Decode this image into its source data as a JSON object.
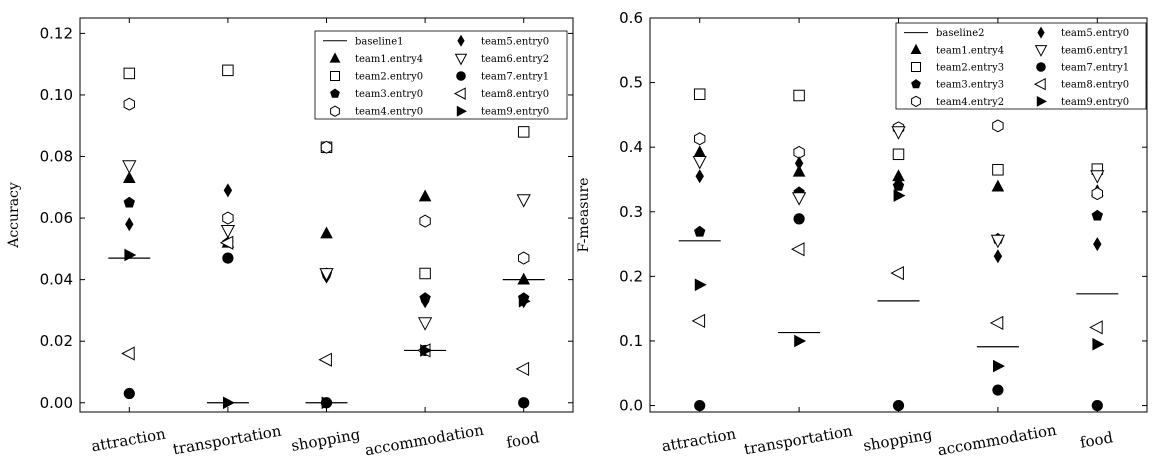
{
  "chart_data": [
    {
      "type": "scatter",
      "xlabel": "",
      "ylabel": "Accuracy",
      "categories": [
        "attraction",
        "transportation",
        "shopping",
        "accommodation",
        "food"
      ],
      "ylim": [
        -0.003,
        0.125
      ],
      "yticks": [
        "0.00",
        "0.02",
        "0.04",
        "0.06",
        "0.08",
        "0.10",
        "0.12"
      ],
      "legend_position": "top-right",
      "series": [
        {
          "name": "baseline1",
          "marker": "line",
          "values": [
            0.047,
            0.0,
            0.0,
            0.017,
            0.04
          ]
        },
        {
          "name": "team1.entry4",
          "marker": "triangle-up",
          "values": [
            0.073,
            0.052,
            0.055,
            0.067,
            0.04
          ]
        },
        {
          "name": "team2.entry0",
          "marker": "square",
          "values": [
            0.107,
            0.108,
            0.083,
            0.042,
            0.088
          ]
        },
        {
          "name": "team3.entry0",
          "marker": "pentagon",
          "values": [
            0.065,
            0.052,
            0.042,
            0.034,
            0.034
          ]
        },
        {
          "name": "team4.entry0",
          "marker": "hexagon",
          "values": [
            0.097,
            0.06,
            0.083,
            0.059,
            0.047
          ]
        },
        {
          "name": "team5.entry0",
          "marker": "diamond",
          "values": [
            0.058,
            0.069,
            0.041,
            0.033,
            0.033
          ]
        },
        {
          "name": "team6.entry2",
          "marker": "triangle-down",
          "values": [
            0.077,
            0.056,
            0.042,
            0.026,
            0.066
          ]
        },
        {
          "name": "team7.entry1",
          "marker": "circle",
          "values": [
            0.003,
            0.047,
            0.0,
            0.017,
            0.0
          ]
        },
        {
          "name": "team8.entry0",
          "marker": "triangle-left",
          "values": [
            0.016,
            0.052,
            0.014,
            0.017,
            0.011
          ]
        },
        {
          "name": "team9.entry0",
          "marker": "triangle-right",
          "values": [
            0.048,
            0.0,
            0.0,
            0.017,
            0.033
          ]
        }
      ]
    },
    {
      "type": "scatter",
      "xlabel": "",
      "ylabel": "F-measure",
      "categories": [
        "attraction",
        "transportation",
        "shopping",
        "accommodation",
        "food"
      ],
      "ylim": [
        -0.01,
        0.6
      ],
      "yticks": [
        "0.0",
        "0.1",
        "0.2",
        "0.3",
        "0.4",
        "0.5",
        "0.6"
      ],
      "legend_position": "top-right",
      "series": [
        {
          "name": "baseline2",
          "marker": "line",
          "values": [
            0.255,
            0.113,
            0.162,
            0.091,
            0.173
          ]
        },
        {
          "name": "team1.entry4",
          "marker": "triangle-up",
          "values": [
            0.392,
            0.362,
            0.355,
            0.339,
            0.332
          ]
        },
        {
          "name": "team2.entry3",
          "marker": "square",
          "values": [
            0.482,
            0.48,
            0.389,
            0.365,
            0.366
          ]
        },
        {
          "name": "team3.entry3",
          "marker": "pentagon",
          "values": [
            0.269,
            0.33,
            0.34,
            0.258,
            0.294
          ]
        },
        {
          "name": "team4.entry2",
          "marker": "hexagon",
          "values": [
            0.413,
            0.392,
            0.43,
            0.433,
            0.328
          ]
        },
        {
          "name": "team5.entry0",
          "marker": "diamond",
          "values": [
            0.355,
            0.375,
            0.345,
            0.231,
            0.25
          ]
        },
        {
          "name": "team6.entry1",
          "marker": "triangle-down",
          "values": [
            0.378,
            0.322,
            0.424,
            0.256,
            0.356
          ]
        },
        {
          "name": "team7.entry1",
          "marker": "circle",
          "values": [
            0.0,
            0.289,
            0.0,
            0.024,
            0.0
          ]
        },
        {
          "name": "team8.entry0",
          "marker": "triangle-left",
          "values": [
            0.131,
            0.242,
            0.205,
            0.128,
            0.121
          ]
        },
        {
          "name": "team9.entry0",
          "marker": "triangle-right",
          "values": [
            0.187,
            0.1,
            0.325,
            0.061,
            0.095
          ]
        }
      ]
    }
  ]
}
